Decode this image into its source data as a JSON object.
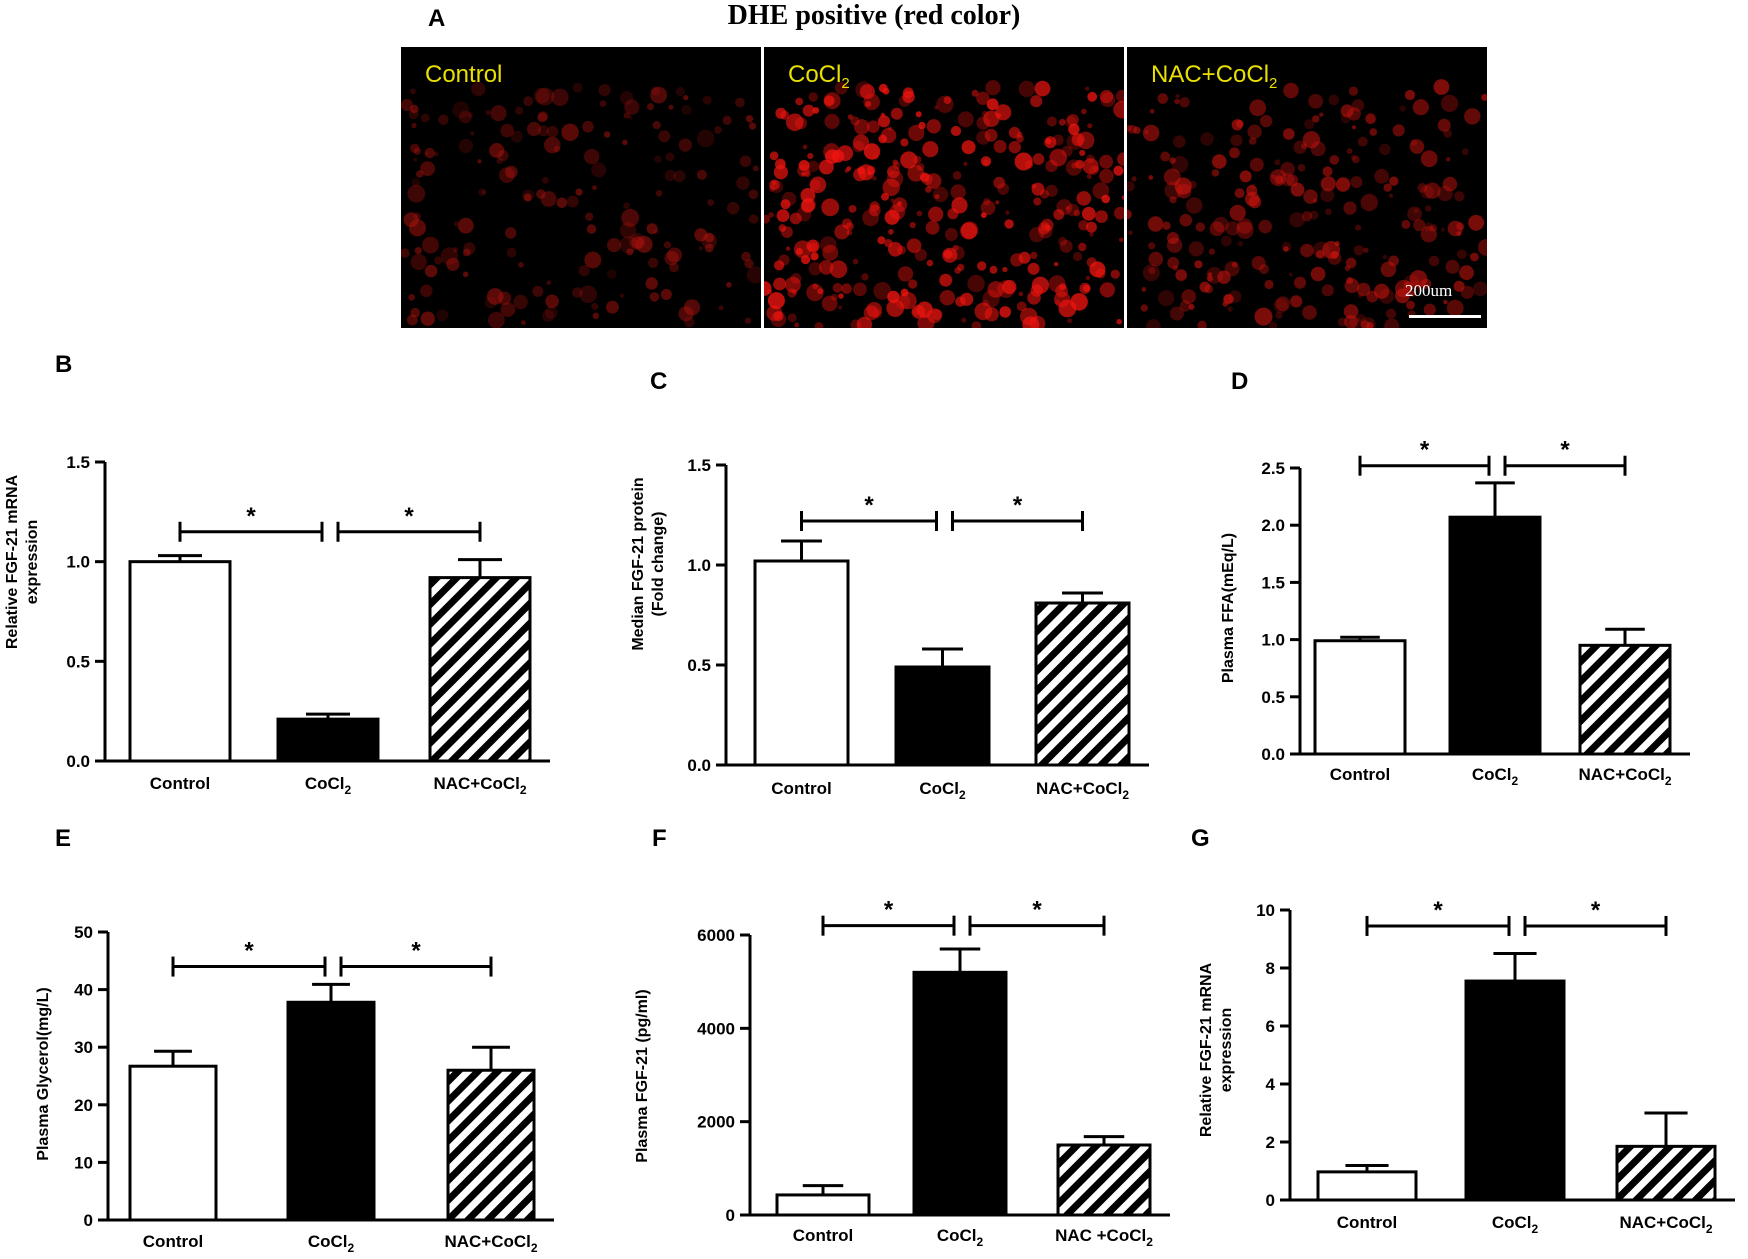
{
  "panel_a": {
    "letter": "A",
    "title": "DHE positive (red color)",
    "images": [
      {
        "label": "Control",
        "intensity": 0.35
      },
      {
        "label": "CoCl2",
        "intensity": 1.0
      },
      {
        "label": "NAC+CoCl2",
        "intensity": 0.6
      }
    ],
    "scale_bar": "200um"
  },
  "chart_data": [
    {
      "id": "B",
      "letter": "B",
      "type": "bar",
      "categories": [
        "Control",
        "CoCl2",
        "NAC+CoCl2"
      ],
      "values": [
        1.0,
        0.21,
        0.92
      ],
      "errors": [
        0.03,
        0.025,
        0.09
      ],
      "ylabel": [
        "Relative FGF-21 mRNA",
        "expression"
      ],
      "ylim": [
        0,
        1.5
      ],
      "yticks": [
        0.0,
        0.5,
        1.0,
        1.5
      ],
      "ytick_labels": [
        "0.0",
        "0.5",
        "1.0",
        "1.5"
      ],
      "sig": [
        {
          "from": 0,
          "to": 1,
          "y": 1.15,
          "label": "*"
        },
        {
          "from": 1,
          "to": 2,
          "y": 1.15,
          "label": "*"
        }
      ]
    },
    {
      "id": "C",
      "letter": "C",
      "type": "bar",
      "categories": [
        "Control",
        "CoCl2",
        "NAC+CoCl2"
      ],
      "values": [
        1.02,
        0.49,
        0.81
      ],
      "errors": [
        0.1,
        0.09,
        0.05
      ],
      "ylabel": [
        "Median FGF-21 protein",
        "(Fold change)"
      ],
      "ylim": [
        0,
        1.5
      ],
      "yticks": [
        0.0,
        0.5,
        1.0,
        1.5
      ],
      "ytick_labels": [
        "0.0",
        "0.5",
        "1.0",
        "1.5"
      ],
      "sig": [
        {
          "from": 0,
          "to": 1,
          "y": 1.22,
          "label": "*"
        },
        {
          "from": 1,
          "to": 2,
          "y": 1.22,
          "label": "*"
        }
      ]
    },
    {
      "id": "D",
      "letter": "D",
      "type": "bar",
      "categories": [
        "Control",
        "CoCl2",
        "NAC+CoCl2"
      ],
      "values": [
        0.99,
        2.07,
        0.95
      ],
      "errors": [
        0.03,
        0.3,
        0.14
      ],
      "ylabel": [
        "Plasma FFA(mEq/L)"
      ],
      "ylim": [
        0,
        2.5
      ],
      "yticks": [
        0.0,
        0.5,
        1.0,
        1.5,
        2.0,
        2.5
      ],
      "ytick_labels": [
        "0.0",
        "0.5",
        "1.0",
        "1.5",
        "2.0",
        "2.5"
      ],
      "sig": [
        {
          "from": 0,
          "to": 1,
          "y": 2.52,
          "label": "*"
        },
        {
          "from": 1,
          "to": 2,
          "y": 2.52,
          "label": "*"
        }
      ]
    },
    {
      "id": "E",
      "letter": "E",
      "type": "bar",
      "categories": [
        "Control",
        "CoCl2",
        "NAC+CoCl2"
      ],
      "values": [
        26.7,
        37.8,
        26.0
      ],
      "errors": [
        2.6,
        3.1,
        4.0
      ],
      "ylabel": [
        "Plasma Glycerol(mg/L)"
      ],
      "ylim": [
        0,
        50
      ],
      "yticks": [
        0,
        10,
        20,
        30,
        40,
        50
      ],
      "ytick_labels": [
        "0",
        "10",
        "20",
        "30",
        "40",
        "50"
      ],
      "sig": [
        {
          "from": 0,
          "to": 1,
          "y": 44,
          "label": "*"
        },
        {
          "from": 1,
          "to": 2,
          "y": 44,
          "label": "*"
        }
      ]
    },
    {
      "id": "F",
      "letter": "F",
      "type": "bar",
      "categories": [
        "Control",
        "CoCl2",
        "NAC +CoCl2"
      ],
      "values": [
        430,
        5200,
        1500
      ],
      "errors": [
        200,
        500,
        180
      ],
      "ylabel": [
        "Plasma FGF-21 (pg/ml)"
      ],
      "ylim": [
        0,
        6000
      ],
      "yticks": [
        0,
        2000,
        4000,
        6000
      ],
      "ytick_labels": [
        "0",
        "2000",
        "4000",
        "6000"
      ],
      "sig": [
        {
          "from": 0,
          "to": 1,
          "y": 6200,
          "label": "*"
        },
        {
          "from": 1,
          "to": 2,
          "y": 6200,
          "label": "*"
        }
      ]
    },
    {
      "id": "G",
      "letter": "G",
      "type": "bar",
      "categories": [
        "Control",
        "CoCl2",
        "NAC+CoCl2"
      ],
      "values": [
        0.97,
        7.55,
        1.85
      ],
      "errors": [
        0.22,
        0.95,
        1.15
      ],
      "ylabel": [
        "Relative FGF-21 mRNA",
        "expression"
      ],
      "ylim": [
        0,
        10
      ],
      "yticks": [
        0,
        2,
        4,
        6,
        8,
        10
      ],
      "ytick_labels": [
        "0",
        "2",
        "4",
        "6",
        "8",
        "10"
      ],
      "sig": [
        {
          "from": 0,
          "to": 1,
          "y": 9.45,
          "label": "*"
        },
        {
          "from": 1,
          "to": 2,
          "y": 9.45,
          "label": "*"
        }
      ]
    }
  ]
}
